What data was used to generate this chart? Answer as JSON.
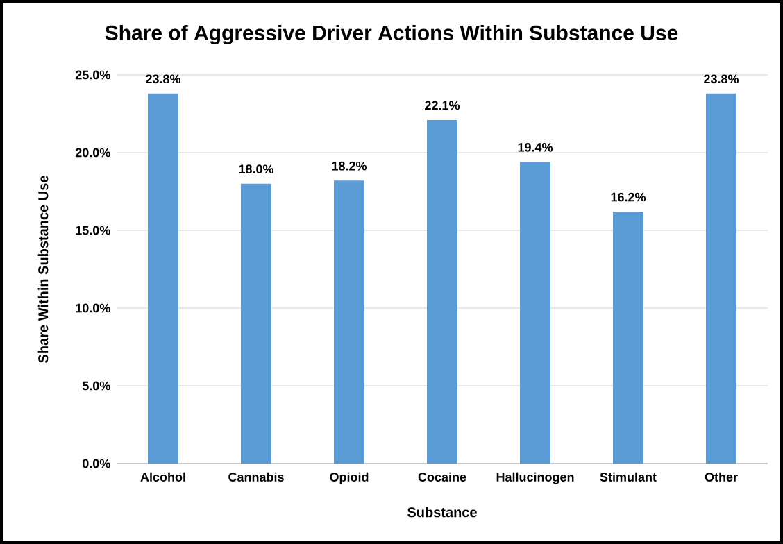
{
  "chart_data": {
    "type": "bar",
    "title": "Share of Aggressive Driver Actions Within Substance Use",
    "xlabel": "Substance",
    "ylabel": "Share Within Substance Use",
    "categories": [
      "Alcohol",
      "Cannabis",
      "Opioid",
      "Cocaine",
      "Hallucinogen",
      "Stimulant",
      "Other"
    ],
    "values": [
      23.8,
      18.0,
      18.2,
      22.1,
      19.4,
      16.2,
      23.8
    ],
    "value_labels": [
      "23.8%",
      "18.0%",
      "18.2%",
      "22.1%",
      "19.4%",
      "16.2%",
      "23.8%"
    ],
    "color": "#5b9bd5",
    "ylim": [
      0,
      25
    ],
    "yticks": [
      {
        "value": 0,
        "label": "0.0%"
      },
      {
        "value": 5,
        "label": "5.0%"
      },
      {
        "value": 10,
        "label": "10.0%"
      },
      {
        "value": 15,
        "label": "15.0%"
      },
      {
        "value": 20,
        "label": "20.0%"
      },
      {
        "value": 25,
        "label": "25.0%"
      }
    ],
    "grid": "y"
  }
}
